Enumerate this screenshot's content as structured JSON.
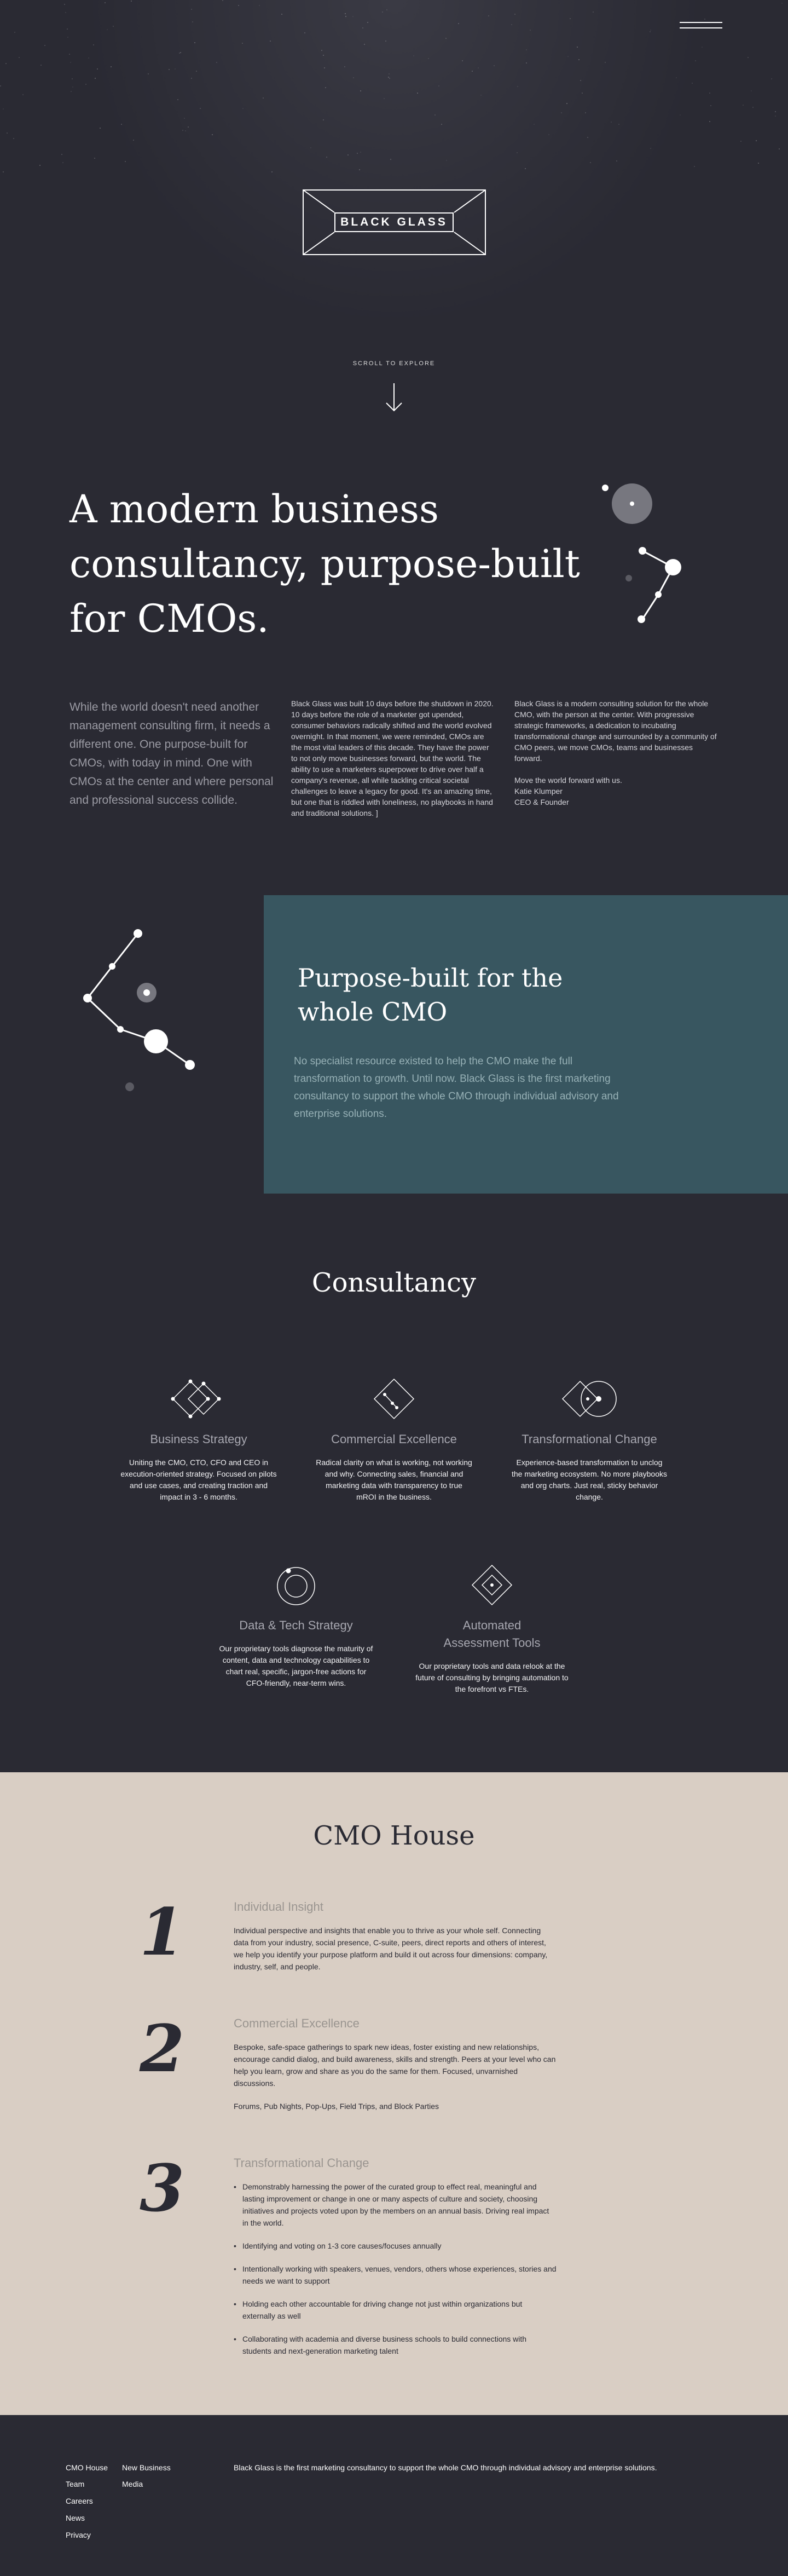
{
  "header": {
    "menu_icon": "hamburger-icon",
    "logo_text": "BLACK GLASS",
    "scroll_label": "SCROLL TO EXPLORE",
    "arrow_icon": "arrow-down-icon"
  },
  "intro": {
    "heading": "A modern business consultancy, purpose-built for CMOs.",
    "lede": "While the world doesn't need another management consulting firm, it needs a different one. One purpose-built for CMOs, with today in mind. One with CMOs at the center and where personal and professional success collide.",
    "column_a": "Black Glass was built 10 days before the shutdown in 2020. 10 days before the role of a marketer got upended, consumer behaviors radically shifted and the world evolved overnight. In that moment, we were reminded, CMOs are the most vital leaders of this decade. They have the power to not only move businesses forward, but the world. The ability to use a marketers superpower to drive over half a company's revenue, all while tackling critical societal challenges to leave a legacy for good.  It's an amazing time, but one that is riddled with loneliness, no playbooks in hand and traditional solutions. ]",
    "column_b_p1": "Black Glass is a modern consulting solution for the whole CMO, with the person at the center. With progressive strategic frameworks, a dedication to incubating transformational change and surrounded by a community of CMO peers, we move CMOs, teams and businesses forward.",
    "column_b_p2": "Move the world forward with us.",
    "signature_name": "Katie Klumper",
    "signature_title": "CEO & Founder"
  },
  "purpose": {
    "heading": "Purpose-built for the whole CMO",
    "body": "No specialist resource existed to help the CMO make the full transformation to growth. Until now. Black Glass is the first marketing consultancy to support the whole CMO through individual advisory and enterprise solutions."
  },
  "consultancy": {
    "heading": "Consultancy",
    "services": [
      {
        "title": "Business Strategy",
        "body": "Uniting the CMO, CTO, CFO and CEO in execution-oriented strategy. Focused on pilots and use cases, and creating traction and impact in 3 - 6 months.",
        "icon": "business-strategy-icon"
      },
      {
        "title": "Commercial Excellence",
        "body": "Radical clarity on what is working, not working and why. Connecting sales, financial and marketing data with transparency to true mROI in the business.",
        "icon": "commercial-excellence-icon"
      },
      {
        "title": "Transformational Change",
        "body": "Experience-based transformation to unclog the marketing ecosystem. No more playbooks and org charts. Just real, sticky behavior change.",
        "icon": "transformational-change-icon"
      },
      {
        "title": "Data & Tech Strategy",
        "body": "Our proprietary tools diagnose the maturity of content, data and technology capabilities to chart real, specific, jargon-free actions for CFO-friendly, near-term wins.",
        "icon": "data-tech-icon"
      },
      {
        "title_line1": "Automated",
        "title_line2": "Assessment Tools",
        "body": "Our proprietary tools and data relook at the future of consulting by bringing automation to the forefront vs FTEs.",
        "icon": "assessment-tools-icon"
      }
    ]
  },
  "house": {
    "heading": "CMO House",
    "pillars": [
      {
        "number": "1",
        "title": "Individual Insight",
        "body": "Individual perspective and insights that enable you to thrive as your whole self. Connecting data from your industry, social presence, C-suite, peers, direct reports and others of interest, we help you identify your purpose platform and build it out across four dimensions: company, industry, self, and people."
      },
      {
        "number": "2",
        "title": "Commercial Excellence",
        "body": "Bespoke, safe-space gatherings to spark new ideas, foster existing and new relationships, encourage candid dialog, and build awareness, skills and strength. Peers at your level who can help you learn, grow and share as you do the same for them. Focused, unvarnished discussions.",
        "body2": "Forums, Pub Nights, Pop-Ups, Field Trips, and Block Parties"
      },
      {
        "number": "3",
        "title": "Transformational Change",
        "items": [
          "Demonstrably harnessing the power of the curated group to effect real, meaningful and lasting improvement or change in one or many aspects of culture and society, choosing initiatives and projects voted upon by the members on an annual basis. Driving real impact in the world.",
          "Identifying and voting on 1-3 core causes/focuses annually",
          "Intentionally working with speakers, venues, vendors, others whose experiences, stories and needs we want to support",
          "Holding each other accountable for driving change not just within organizations but externally as well",
          "Collaborating with academia and diverse business schools to build connections with students and next-generation marketing talent"
        ]
      }
    ]
  },
  "footer": {
    "links_col1": [
      "CMO House",
      "Team",
      "Careers",
      "News",
      "Privacy"
    ],
    "links_col2": [
      "New Business",
      "Media"
    ],
    "tagline": "Black Glass is the first marketing consultancy to support the whole CMO through individual advisory and enterprise solutions."
  },
  "colors": {
    "background": "#2a2a33",
    "panel": "#385660",
    "house": "#d9cec4"
  }
}
